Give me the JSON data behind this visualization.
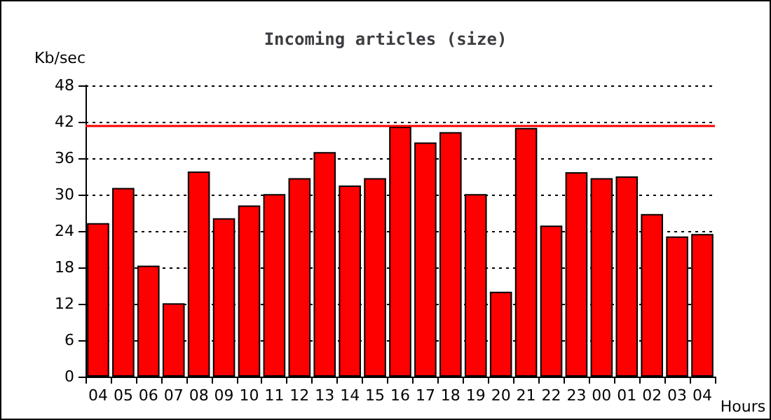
{
  "chart_data": {
    "type": "bar",
    "title": "Incoming articles (size)",
    "ylabel": "Kb/sec",
    "xlabel": "Hours",
    "categories": [
      "04",
      "05",
      "06",
      "07",
      "08",
      "09",
      "10",
      "11",
      "12",
      "13",
      "14",
      "15",
      "16",
      "17",
      "18",
      "19",
      "20",
      "21",
      "22",
      "23",
      "00",
      "01",
      "02",
      "03",
      "04"
    ],
    "values": [
      25.3,
      31.1,
      18.3,
      12.1,
      33.8,
      26.1,
      28.2,
      30.1,
      32.7,
      37.0,
      31.5,
      32.7,
      41.2,
      38.6,
      40.3,
      30.1,
      14.0,
      41.0,
      24.9,
      33.7,
      32.7,
      33.0,
      26.8,
      23.1,
      23.5
    ],
    "color": "#ff0000",
    "ylim": [
      0,
      48
    ],
    "yticks": [
      0,
      6,
      12,
      18,
      24,
      30,
      36,
      42,
      48
    ],
    "grid": "y",
    "ref_lines": [
      {
        "axis": "y",
        "value": 41.3,
        "label": null,
        "color": "#ff0000",
        "line_style": "solid"
      }
    ]
  }
}
